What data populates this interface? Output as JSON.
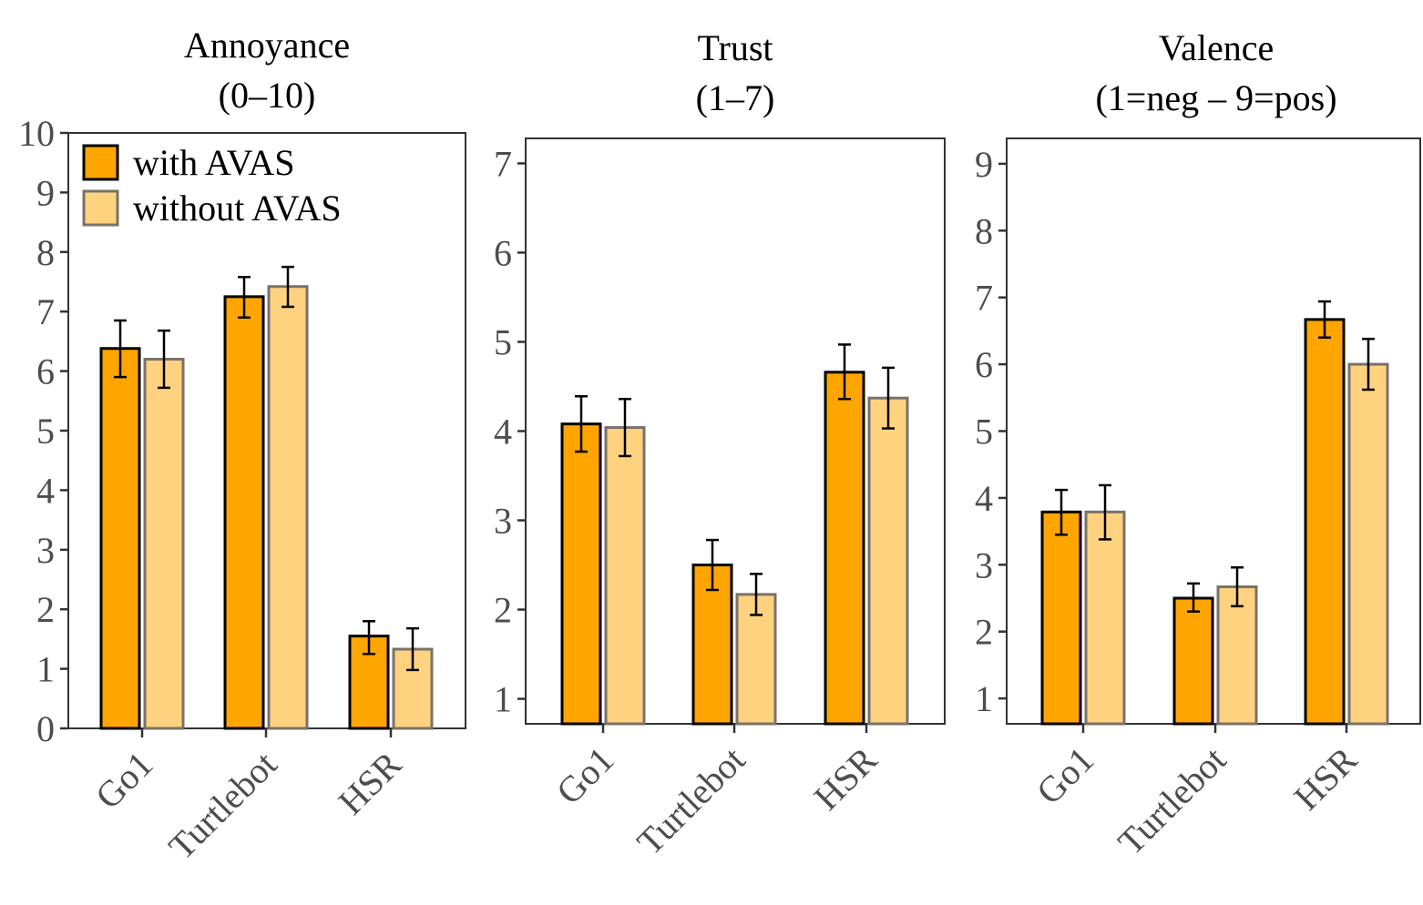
{
  "chart_data": [
    {
      "type": "bar",
      "title_lines": [
        "Annoyance",
        "(0–10)"
      ],
      "xlabel": "",
      "ylabel": "",
      "categories": [
        "Go1",
        "Turtlebot",
        "HSR"
      ],
      "ylim": [
        0,
        10
      ],
      "yticks": [
        "0",
        "1",
        "2",
        "3",
        "4",
        "5",
        "6",
        "7",
        "8",
        "9",
        "10"
      ],
      "series": [
        {
          "name": "with AVAS",
          "values": [
            6.38,
            7.25,
            1.55
          ],
          "err_low": [
            5.9,
            6.9,
            1.25
          ],
          "err_high": [
            6.85,
            7.58,
            1.8
          ]
        },
        {
          "name": "without AVAS",
          "values": [
            6.2,
            7.42,
            1.33
          ],
          "err_low": [
            5.72,
            7.08,
            0.98
          ],
          "err_high": [
            6.68,
            7.75,
            1.68
          ]
        }
      ],
      "grid": false,
      "legend": "top-left"
    },
    {
      "type": "bar",
      "title_lines": [
        "Trust",
        "(1–7)"
      ],
      "xlabel": "",
      "ylabel": "",
      "categories": [
        "Go1",
        "Turtlebot",
        "HSR"
      ],
      "ylim": [
        0.72,
        7.28
      ],
      "yticks": [
        "1",
        "2",
        "3",
        "4",
        "5",
        "6",
        "7"
      ],
      "series": [
        {
          "name": "with AVAS",
          "values": [
            4.08,
            2.5,
            4.66
          ],
          "err_low": [
            3.77,
            2.22,
            4.36
          ],
          "err_high": [
            4.39,
            2.78,
            4.97
          ]
        },
        {
          "name": "without AVAS",
          "values": [
            4.04,
            2.17,
            4.37
          ],
          "err_low": [
            3.72,
            1.94,
            4.03
          ],
          "err_high": [
            4.36,
            2.4,
            4.71
          ]
        }
      ],
      "grid": false
    },
    {
      "type": "bar",
      "title_lines": [
        "Valence",
        "(1=neg – 9=pos)"
      ],
      "xlabel": "",
      "ylabel": "",
      "categories": [
        "Go1",
        "Turtlebot",
        "HSR"
      ],
      "ylim": [
        0.62,
        9.38
      ],
      "yticks": [
        "1",
        "2",
        "3",
        "4",
        "5",
        "6",
        "7",
        "8",
        "9"
      ],
      "series": [
        {
          "name": "with AVAS",
          "values": [
            3.79,
            2.5,
            6.67
          ],
          "err_low": [
            3.45,
            2.3,
            6.4
          ],
          "err_high": [
            4.12,
            2.72,
            6.94
          ]
        },
        {
          "name": "without AVAS",
          "values": [
            3.79,
            2.67,
            6.0
          ],
          "err_low": [
            3.38,
            2.38,
            5.62
          ],
          "err_high": [
            4.19,
            2.96,
            6.38
          ]
        }
      ],
      "grid": false
    }
  ],
  "colors": {
    "with_fill": "#ffa500",
    "with_stroke": "#000000",
    "without_fill": "#ffd280",
    "without_stroke": "#7a7268",
    "error_bar": "#000000",
    "frame": "#333333",
    "tick_text": "#4d4d4d"
  }
}
